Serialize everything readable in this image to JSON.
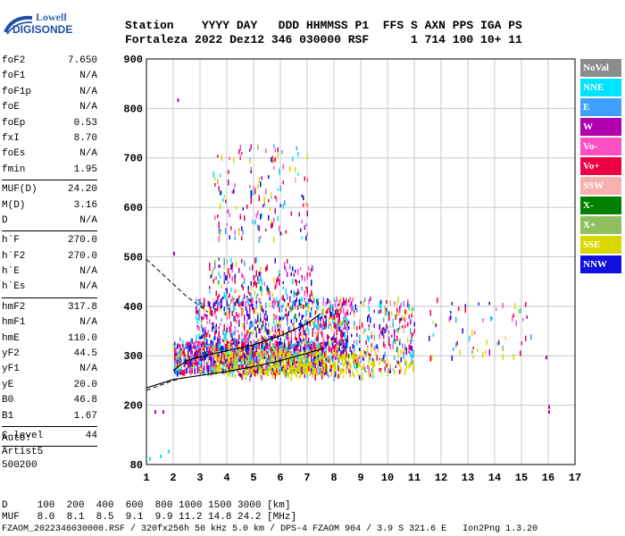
{
  "logo": {
    "line1": "Lowell",
    "line2": "DIGISONDE"
  },
  "header": {
    "labels": [
      "Station",
      "YYYY",
      "DAY",
      "DDD",
      "HHMMSS",
      "P1",
      "FFS",
      "S",
      "AXN",
      "PPS",
      "IGA",
      "PS"
    ],
    "values": [
      "Fortaleza",
      "2022",
      "Dez12",
      "346",
      "030000",
      "RSF",
      "1",
      "714",
      "100",
      "10+",
      "11"
    ]
  },
  "params": [
    [
      {
        "name": "foF2",
        "value": "7.650"
      },
      {
        "name": "foF1",
        "value": "N/A"
      },
      {
        "name": "foF1p",
        "value": "N/A"
      },
      {
        "name": "foE",
        "value": "N/A"
      },
      {
        "name": "foEp",
        "value": "0.53"
      },
      {
        "name": "fxI",
        "value": "8.70"
      },
      {
        "name": "foEs",
        "value": "N/A"
      },
      {
        "name": "fmin",
        "value": "1.95"
      }
    ],
    [
      {
        "name": "MUF(D)",
        "value": "24.20"
      },
      {
        "name": "M(D)",
        "value": "3.16"
      },
      {
        "name": "D",
        "value": "N/A"
      }
    ],
    [
      {
        "name": "h`F",
        "value": "270.0"
      },
      {
        "name": "h`F2",
        "value": "270.0"
      },
      {
        "name": "h`E",
        "value": "N/A"
      },
      {
        "name": "h`Es",
        "value": "N/A"
      }
    ],
    [
      {
        "name": "hmF2",
        "value": "317.8"
      },
      {
        "name": "hmF1",
        "value": "N/A"
      },
      {
        "name": "hmE",
        "value": "110.0"
      },
      {
        "name": "yF2",
        "value": "44.5"
      },
      {
        "name": "yF1",
        "value": "N/A"
      },
      {
        "name": "yE",
        "value": "20.0"
      },
      {
        "name": "B0",
        "value": "46.8"
      },
      {
        "name": "B1",
        "value": "1.67"
      }
    ],
    [
      {
        "name": "C-level",
        "value": "44"
      }
    ]
  ],
  "auto": {
    "line1": "Auto:",
    "line2": "Artist5",
    "line3": "500200"
  },
  "bottom": {
    "d_row": "D     100  200  400  600  800 1000 1500 3000 [km]",
    "muf_row": "MUF   8.0  8.1  8.5  9.1  9.9 11.2 14.8 24.2 [MHz]",
    "footer": "FZAOM_2022346030000.RSF / 320fx256h 50 kHz 5.0 km / DPS-4 FZAOM 904 / 3.9 S 321.6 E   Ion2Png 1.3.20"
  },
  "legend": [
    {
      "label": "NoVal",
      "color": "#8c8c8c"
    },
    {
      "label": "NNE",
      "color": "#00e5ff"
    },
    {
      "label": "E",
      "color": "#3fa0ff"
    },
    {
      "label": "W",
      "color": "#b000b0"
    },
    {
      "label": "Vo-",
      "color": "#ff4fc4"
    },
    {
      "label": "Vo+",
      "color": "#ee0044"
    },
    {
      "label": "SSW",
      "color": "#f8b0b0"
    },
    {
      "label": "X-",
      "color": "#008000"
    },
    {
      "label": "X+",
      "color": "#8fc060"
    },
    {
      "label": "SSE",
      "color": "#d8d800"
    },
    {
      "label": "NNW",
      "color": "#1010e0"
    }
  ],
  "chart_data": {
    "type": "scatter",
    "xlim": [
      1,
      17
    ],
    "ylim": [
      80,
      900
    ],
    "x_ticks": [
      1,
      2,
      3,
      4,
      5,
      6,
      7,
      8,
      9,
      10,
      11,
      12,
      13,
      14,
      15,
      16,
      17
    ],
    "y_ticks": [
      80,
      200,
      300,
      400,
      500,
      600,
      700,
      800,
      900
    ],
    "grid": true,
    "curves": {
      "profile_upper": [
        [
          2.0,
          270
        ],
        [
          2.5,
          290
        ],
        [
          3,
          298
        ],
        [
          4,
          310
        ],
        [
          5,
          322
        ],
        [
          6,
          340
        ],
        [
          7,
          365
        ],
        [
          7.5,
          385
        ]
      ],
      "profile_lower": [
        [
          1,
          235
        ],
        [
          2,
          252
        ],
        [
          3,
          260
        ],
        [
          4,
          268
        ],
        [
          5,
          278
        ],
        [
          6,
          290
        ],
        [
          7,
          305
        ],
        [
          7.6,
          315
        ]
      ],
      "dashed_upper": [
        [
          1,
          495
        ],
        [
          1.5,
          470
        ],
        [
          2,
          445
        ],
        [
          2.5,
          420
        ],
        [
          3,
          400
        ],
        [
          3.3,
          388
        ]
      ],
      "dashed_lower": [
        [
          1,
          230
        ],
        [
          1.5,
          240
        ],
        [
          2,
          250
        ],
        [
          2.5,
          257
        ]
      ]
    },
    "echo_clusters": [
      {
        "x": [
          2,
          7.7
        ],
        "y": [
          270,
          330
        ],
        "density": 1200
      },
      {
        "x": [
          2.8,
          8.5
        ],
        "y": [
          300,
          420
        ],
        "density": 900
      },
      {
        "x": [
          3.3,
          7.2
        ],
        "y": [
          400,
          500
        ],
        "density": 250
      },
      {
        "x": [
          7.5,
          11
        ],
        "y": [
          270,
          420
        ],
        "density": 400
      },
      {
        "x": [
          3.5,
          7.0
        ],
        "y": [
          540,
          730
        ],
        "density": 160
      },
      {
        "x": [
          11.5,
          15.5
        ],
        "y": [
          300,
          420
        ],
        "density": 60
      },
      {
        "x": [
          2.0,
          8.5
        ],
        "y": [
          270,
          340
        ],
        "density": 200
      },
      {
        "x": [
          4,
          9.5
        ],
        "y": [
          260,
          310
        ],
        "density": 300
      }
    ],
    "isolated_points": [
      {
        "x": 2.15,
        "y": 820
      },
      {
        "x": 1.3,
        "y": 190
      },
      {
        "x": 1.6,
        "y": 190
      },
      {
        "x": 1.1,
        "y": 95
      },
      {
        "x": 1.5,
        "y": 100
      },
      {
        "x": 16.0,
        "y": 190
      },
      {
        "x": 16.0,
        "y": 200
      },
      {
        "x": 15.9,
        "y": 300
      },
      {
        "x": 2.0,
        "y": 510
      },
      {
        "x": 1.8,
        "y": 110
      }
    ]
  }
}
